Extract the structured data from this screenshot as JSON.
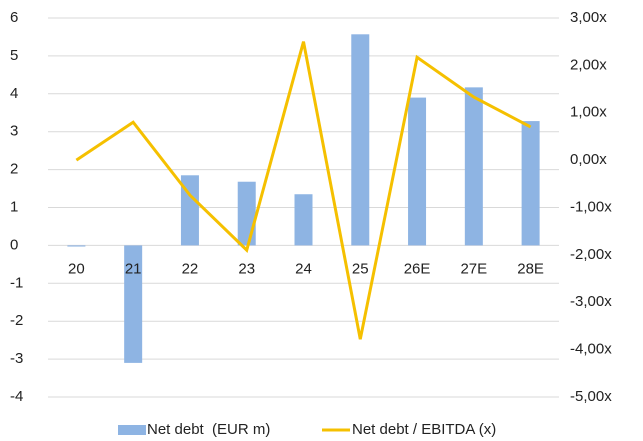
{
  "chart_data": {
    "type": "bar_line",
    "categories": [
      "20",
      "21",
      "22",
      "23",
      "24",
      "25",
      "26E",
      "27E",
      "28E"
    ],
    "series": [
      {
        "name": "Net debt  (EUR m)",
        "color": "#8eb4e3",
        "type": "bar",
        "axis": "y",
        "values": [
          -0.03,
          -3.1,
          1.85,
          1.68,
          1.35,
          5.57,
          3.9,
          4.17,
          3.28
        ]
      },
      {
        "name": "Net debt / EBITDA (x)",
        "color": "#f5c000",
        "type": "line",
        "axis": "y2",
        "values": [
          0.0,
          0.8,
          -0.74,
          -1.9,
          2.5,
          -3.78,
          2.17,
          1.33,
          0.7
        ]
      }
    ],
    "ylim": [
      -4,
      6
    ],
    "yticks": [
      -4,
      -3,
      -2,
      -1,
      0,
      1,
      2,
      3,
      4,
      5,
      6
    ],
    "y2lim": [
      -5,
      3
    ],
    "y2ticks": [
      {
        "value": -5,
        "label": "-5,00x"
      },
      {
        "value": -4,
        "label": "-4,00x"
      },
      {
        "value": -3,
        "label": "-3,00x"
      },
      {
        "value": -2,
        "label": "-2,00x"
      },
      {
        "value": -1,
        "label": "-1,00x"
      },
      {
        "value": 0,
        "label": "0,00x"
      },
      {
        "value": 1,
        "label": "1,00x"
      },
      {
        "value": 2,
        "label": "2,00x"
      },
      {
        "value": 3,
        "label": "3,00x"
      }
    ],
    "grid": true,
    "legend": "bottom"
  }
}
